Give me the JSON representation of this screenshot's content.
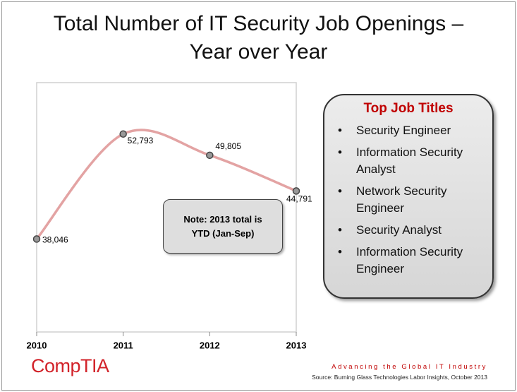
{
  "chart_data": {
    "type": "line",
    "title": "Total Number of IT Security Job Openings –\nYear over Year",
    "x": [
      2010,
      2011,
      2012,
      2013
    ],
    "xlim": [
      2010,
      2013
    ],
    "xticks": [
      2010,
      2011,
      2012,
      2013
    ],
    "ylim": [
      25000,
      60000
    ],
    "series": [
      {
        "color": "#e3a3a3",
        "values": [
          38046,
          52793,
          49805,
          44791
        ],
        "value_labels": [
          "38,046",
          "52,793",
          "49,805",
          "44,791"
        ]
      }
    ],
    "annotations": [
      "Note: 2013 total is\nYTD (Jan-Sep)"
    ]
  },
  "sidebar": {
    "title": "Top Job Titles",
    "items": [
      "Security Engineer",
      "Information Security Analyst",
      "Network Security Engineer",
      "Security Analyst",
      "Information Security Engineer"
    ]
  },
  "footer": {
    "logo": "CompTIA",
    "tagline": "Advancing the Global IT Industry",
    "source": "Source: Burning Glass Technologies Labor Insights, October 2013"
  }
}
